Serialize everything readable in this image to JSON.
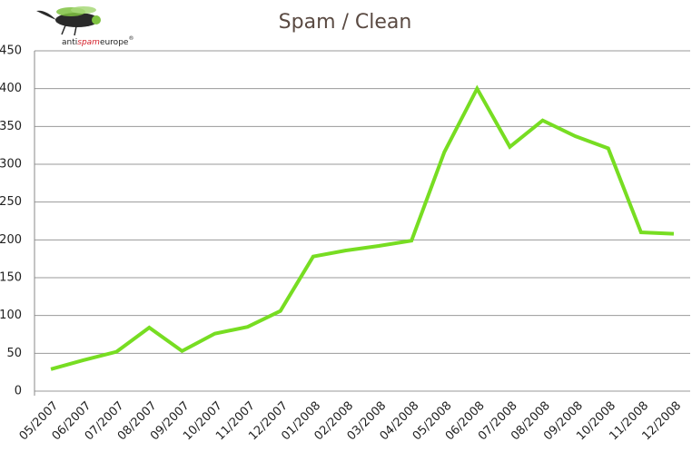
{
  "chart_data": {
    "type": "line",
    "title": "Spam / Clean",
    "logo": {
      "prefix": "anti",
      "highlight": "spam",
      "suffix": "europe",
      "mark": "®"
    },
    "categories": [
      "05/2007",
      "06/2007",
      "07/2007",
      "08/2007",
      "09/2007",
      "10/2007",
      "11/2007",
      "12/2007",
      "01/2008",
      "02/2008",
      "03/2008",
      "04/2008",
      "05/2008",
      "06/2008",
      "07/2008",
      "08/2008",
      "09/2008",
      "10/2008",
      "11/2008",
      "12/2008"
    ],
    "values": [
      29,
      41,
      52,
      84,
      53,
      76,
      85,
      106,
      178,
      186,
      192,
      199,
      316,
      400,
      323,
      358,
      337,
      321,
      210,
      208
    ],
    "color": "#77dd22",
    "ylim": [
      0,
      450
    ],
    "yticks": [
      0,
      50,
      100,
      150,
      200,
      250,
      300,
      350,
      400,
      450
    ],
    "grid": true
  }
}
